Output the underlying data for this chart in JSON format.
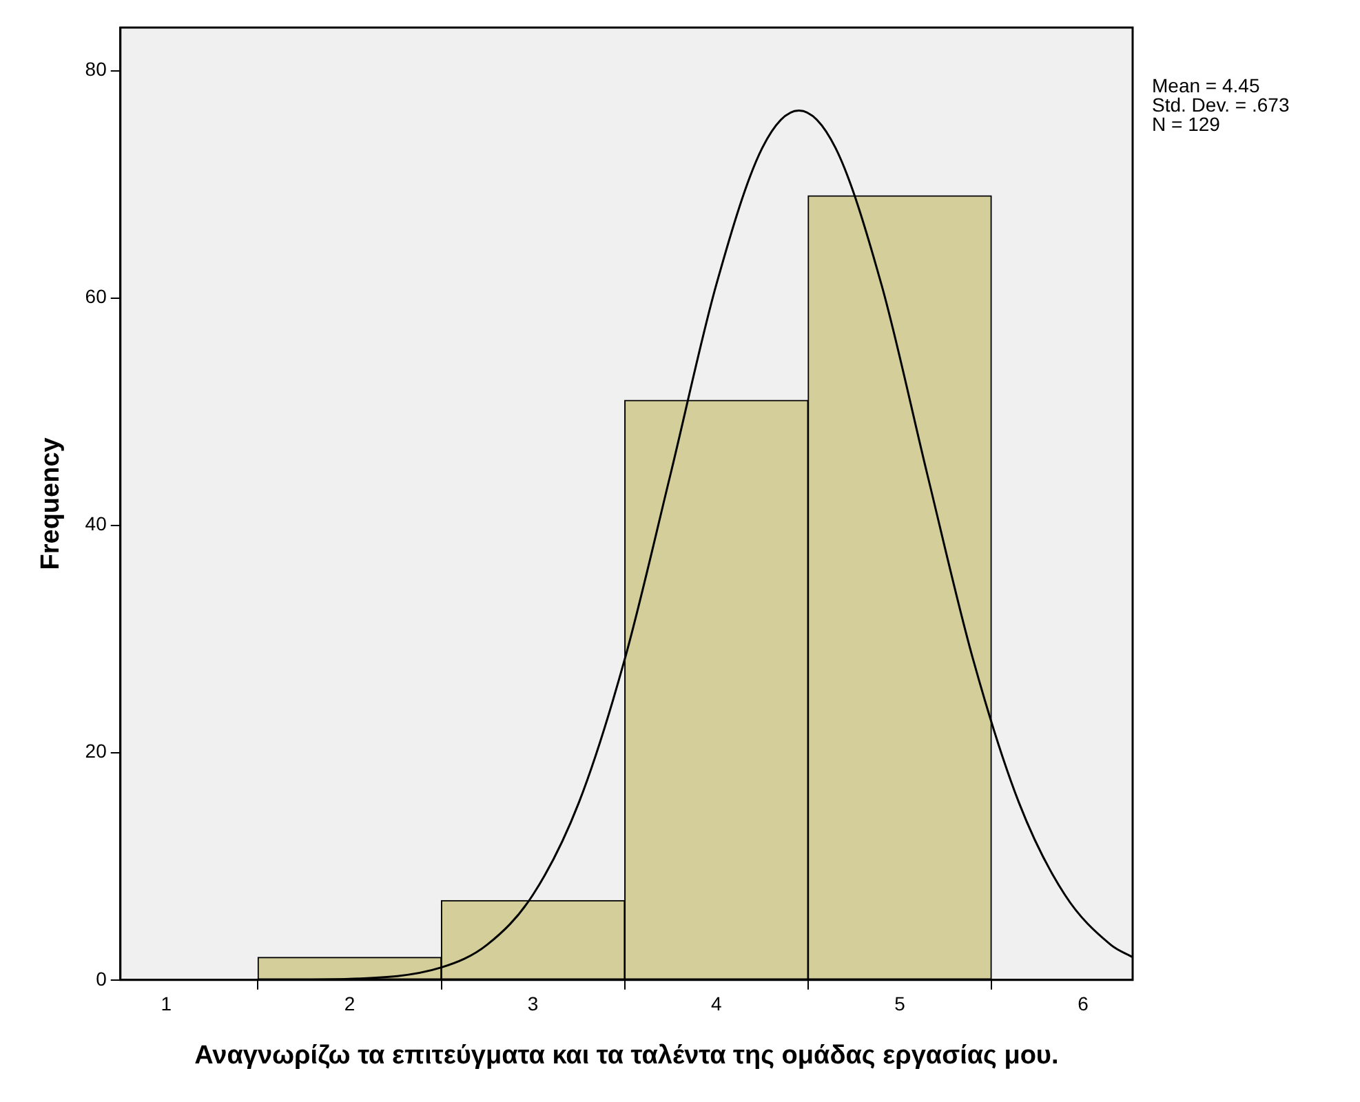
{
  "chart_data": {
    "type": "histogram",
    "xlabel": "Αναγνωρίζω τα επιτεύγματα και τα ταλέντα της ομάδας εργασίας μου.",
    "ylabel": "Frequency",
    "bins": [
      1.5,
      2.5,
      3.5,
      4.5,
      5.5
    ],
    "values": [
      2,
      7,
      51,
      69
    ],
    "color": "#d3ce9a",
    "series": [
      {
        "type": "line",
        "color": "#000000",
        "x": [
          0.75,
          1.0,
          1.5,
          2.0,
          2.5,
          2.75,
          3.0,
          3.25,
          3.5,
          3.75,
          4.0,
          4.25,
          4.45,
          4.65,
          4.9,
          5.15,
          5.4,
          5.65,
          5.9,
          6.15,
          6.27
        ],
        "values": [
          0,
          0,
          0,
          0.1,
          1.1,
          3.1,
          7.5,
          15.6,
          28.2,
          44.5,
          61.2,
          73.2,
          76.5,
          73.2,
          61.2,
          44.5,
          28.2,
          15.6,
          7.5,
          3.1,
          2.0
        ]
      }
    ],
    "xlim": [
      0.75,
      6.27
    ],
    "xticks": [
      1,
      2,
      3,
      4,
      5,
      6
    ],
    "ylim": [
      0,
      83.8
    ],
    "yticks": [
      0,
      20,
      40,
      60,
      80
    ],
    "grid": false,
    "legend": false,
    "annotations": [
      "Mean = 4.45",
      "Std. Dev. = .673",
      "N = 129"
    ]
  }
}
